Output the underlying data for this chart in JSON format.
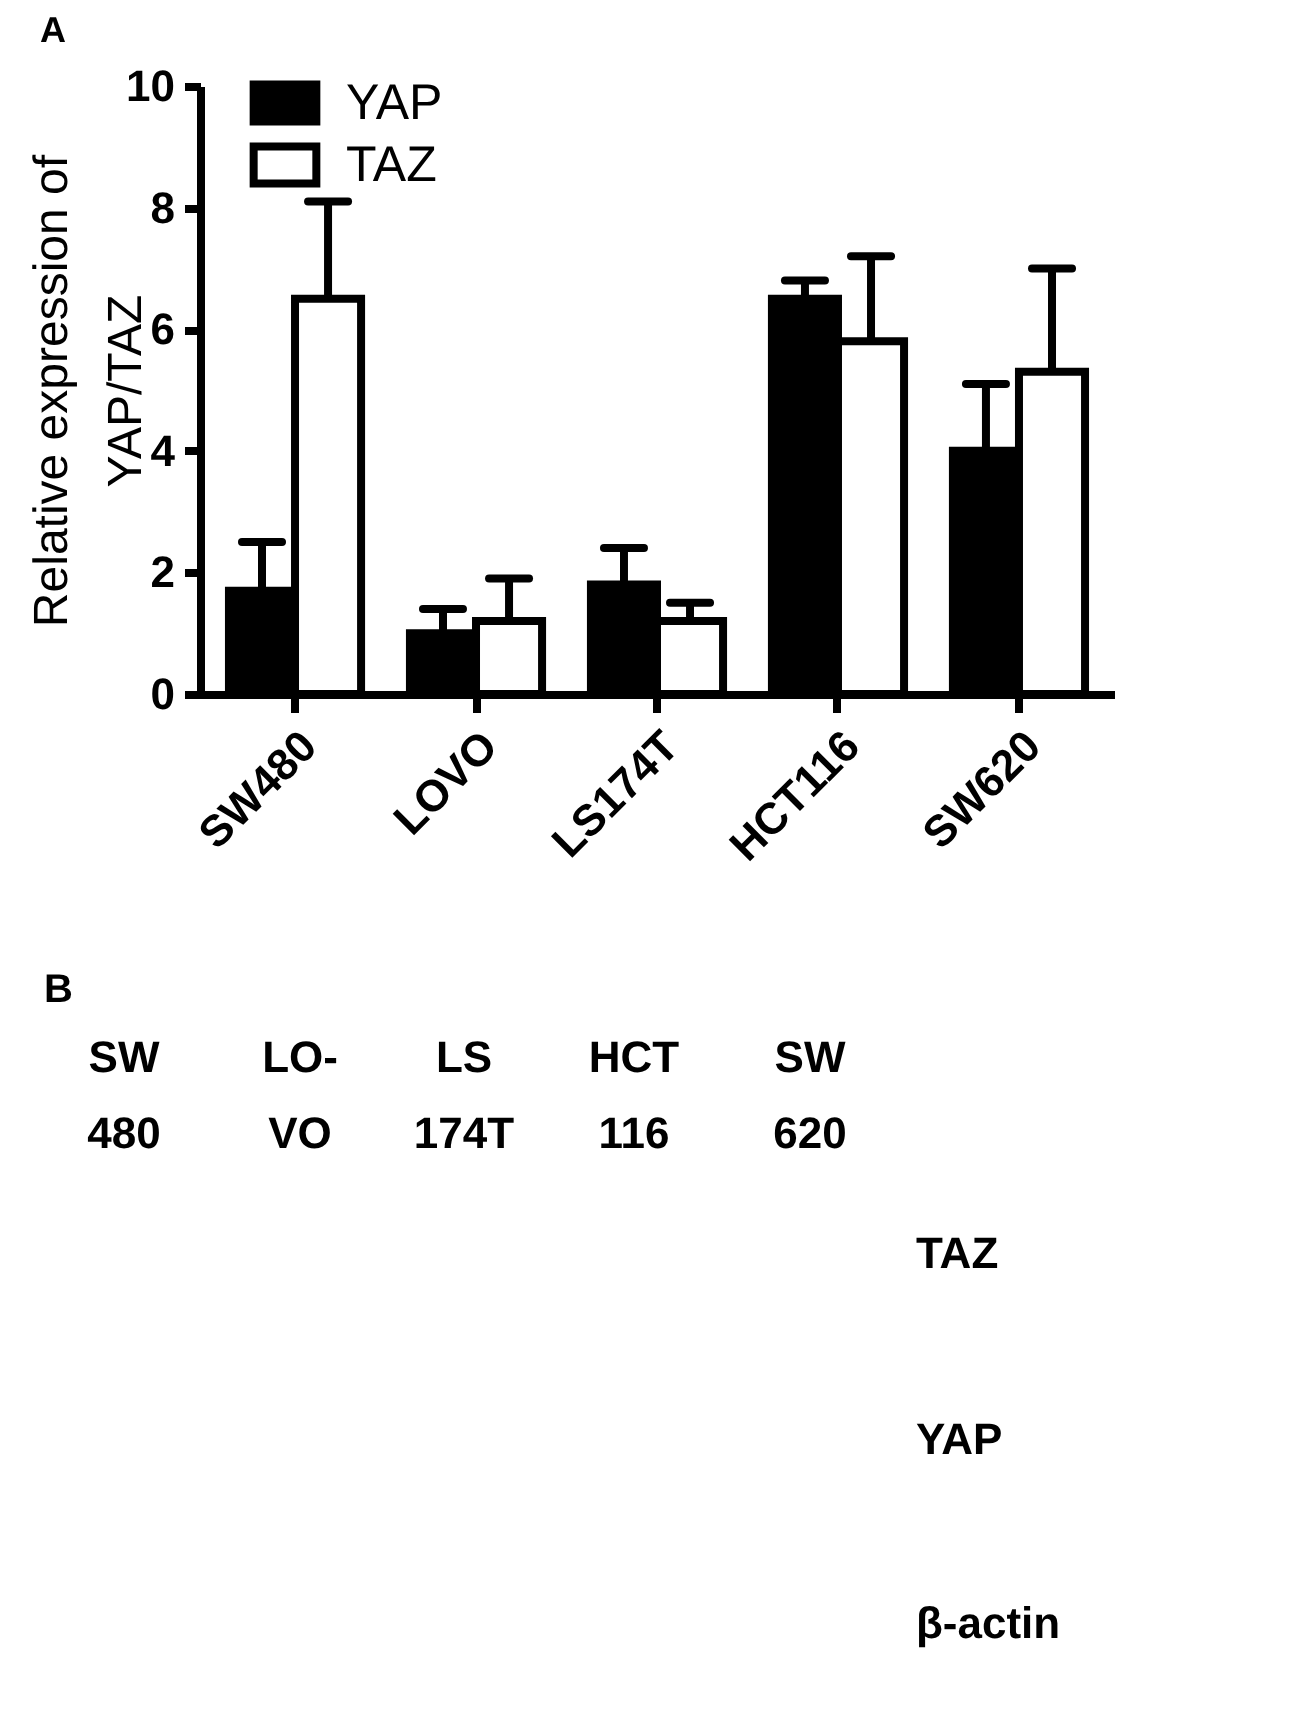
{
  "chart_data": [
    {
      "type": "bar",
      "annotations": [
        "A"
      ],
      "ylabel": "Relative expression of YAP/TAZ",
      "categories": [
        "SW480",
        "LOVO",
        "LS174T",
        "HCT116",
        "SW620"
      ],
      "series": [
        {
          "name": "YAP",
          "color": "#000000",
          "values": [
            1.7,
            1.0,
            1.8,
            6.5,
            4.0
          ],
          "errors": [
            [
              1.7,
              2.5
            ],
            [
              1.0,
              1.4
            ],
            [
              1.8,
              2.4
            ],
            [
              6.5,
              6.8
            ],
            [
              4.0,
              5.1
            ]
          ]
        },
        {
          "name": "TAZ",
          "color": "#ffffff",
          "values": [
            6.5,
            1.2,
            1.2,
            5.8,
            5.3
          ],
          "errors": [
            [
              6.5,
              8.1
            ],
            [
              1.2,
              1.9
            ],
            [
              1.2,
              1.5
            ],
            [
              5.8,
              7.2
            ],
            [
              5.3,
              7.0
            ]
          ]
        }
      ],
      "ylim": [
        0,
        10
      ],
      "yticks": [
        0,
        2,
        4,
        6,
        8,
        10
      ],
      "grid": false,
      "legend": "top left"
    },
    {
      "type": "other",
      "annotations": [
        "B",
        "SW 480",
        "LO- VO",
        "LS 174T",
        "HCT 116",
        "SW 620",
        "TAZ",
        "YAP",
        "β-actin"
      ]
    }
  ]
}
